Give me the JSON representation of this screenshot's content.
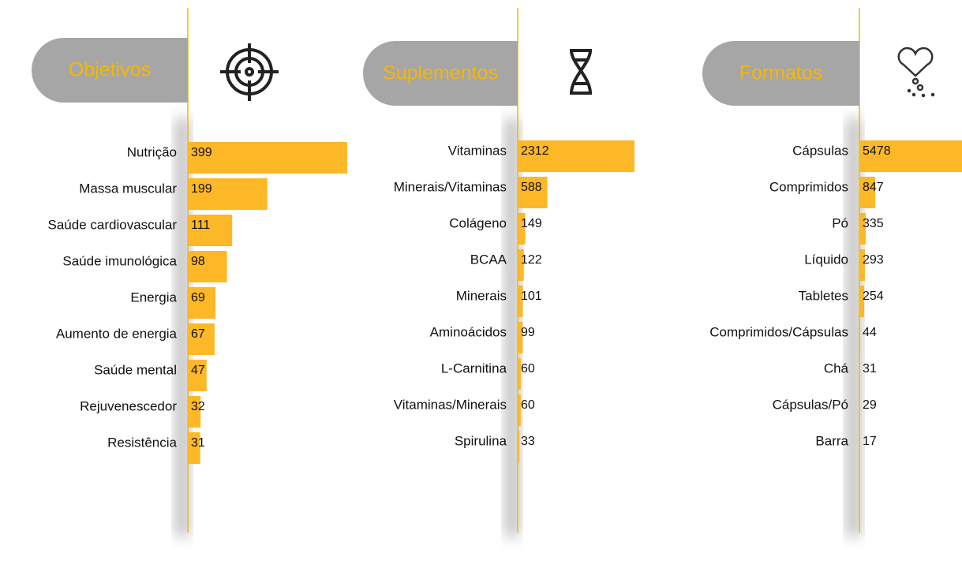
{
  "chart_data": [
    {
      "type": "bar",
      "title": "Objetivos",
      "color": "#fdb827",
      "categories": [
        "Nutrição",
        "Massa muscular",
        "Saúde cardiovascular",
        "Saúde imunológica",
        "Energia",
        "Aumento de energia",
        "Saúde mental",
        "Rejuvenescedor",
        "Resistência"
      ],
      "values": [
        399,
        199,
        111,
        98,
        69,
        67,
        47,
        32,
        31
      ]
    },
    {
      "type": "bar",
      "title": "Suplementos",
      "color": "#fdb827",
      "categories": [
        "Vitaminas",
        "Minerais/Vitaminas",
        "Colágeno",
        "BCAA",
        "Minerais",
        "Aminoácidos",
        "L-Carnitina",
        "Vitaminas/Minerais",
        "Spirulina"
      ],
      "values": [
        2312,
        588,
        149,
        122,
        101,
        99,
        60,
        60,
        33
      ]
    },
    {
      "type": "bar",
      "title": "Formatos",
      "color": "#fdb827",
      "categories": [
        "Cápsulas",
        "Comprimidos",
        "Pó",
        "Líquido",
        "Tabletes",
        "Comprimidos/Cápsulas",
        "Chá",
        "Cápsulas/Pó",
        "Barra"
      ],
      "values": [
        5478,
        847,
        335,
        293,
        254,
        44,
        31,
        29,
        17
      ]
    }
  ]
}
